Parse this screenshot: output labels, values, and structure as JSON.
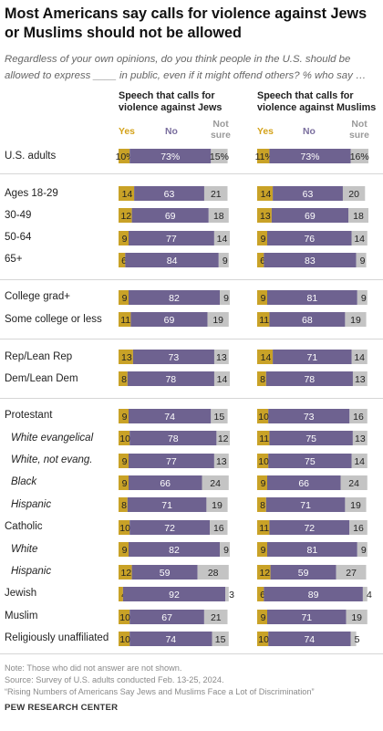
{
  "title": "Most Americans say calls for violence against Jews or Muslims should not be allowed",
  "subtitle": "Regardless of your own opinions, do you think people in the U.S. should be allowed to express ____ in public, even if it might offend others? % who say …",
  "legend": {
    "yes": "Yes",
    "no": "No",
    "not_sure": "Not sure"
  },
  "colors": {
    "yes": "#c9a227",
    "no": "#6e6290",
    "not_sure": "#c4c4c4"
  },
  "chart_data": {
    "type": "bar",
    "stacked": true,
    "orientation": "horizontal",
    "panels": [
      "Speech that calls for violence against Jews",
      "Speech that calls for violence against Muslims"
    ],
    "series_names": [
      "Yes",
      "No",
      "Not sure"
    ],
    "categories": [
      "U.S. adults",
      "Ages 18-29",
      "30-49",
      "50-64",
      "65+",
      "College grad+",
      "Some college or less",
      "Rep/Lean Rep",
      "Dem/Lean Dem",
      "Protestant",
      "White evangelical",
      "White, not evang.",
      "Black",
      "Hispanic",
      "Catholic",
      "White",
      "Hispanic",
      "Jewish",
      "Muslim",
      "Religiously unaffiliated"
    ],
    "jews": [
      [
        10,
        73,
        15
      ],
      [
        14,
        63,
        21
      ],
      [
        12,
        69,
        18
      ],
      [
        9,
        77,
        14
      ],
      [
        6,
        84,
        9
      ],
      [
        9,
        82,
        9
      ],
      [
        11,
        69,
        19
      ],
      [
        13,
        73,
        13
      ],
      [
        8,
        78,
        14
      ],
      [
        9,
        74,
        15
      ],
      [
        10,
        78,
        12
      ],
      [
        9,
        77,
        13
      ],
      [
        9,
        66,
        24
      ],
      [
        8,
        71,
        19
      ],
      [
        10,
        72,
        16
      ],
      [
        9,
        82,
        9
      ],
      [
        12,
        59,
        28
      ],
      [
        4,
        92,
        3
      ],
      [
        10,
        67,
        21
      ],
      [
        10,
        74,
        15
      ]
    ],
    "muslims": [
      [
        11,
        73,
        16
      ],
      [
        14,
        63,
        20
      ],
      [
        13,
        69,
        18
      ],
      [
        9,
        76,
        14
      ],
      [
        6,
        83,
        9
      ],
      [
        9,
        81,
        9
      ],
      [
        11,
        68,
        19
      ],
      [
        14,
        71,
        14
      ],
      [
        8,
        78,
        13
      ],
      [
        10,
        73,
        16
      ],
      [
        11,
        75,
        13
      ],
      [
        10,
        75,
        14
      ],
      [
        9,
        66,
        24
      ],
      [
        8,
        71,
        19
      ],
      [
        11,
        72,
        16
      ],
      [
        9,
        81,
        9
      ],
      [
        12,
        59,
        27
      ],
      [
        6,
        89,
        4
      ],
      [
        9,
        71,
        19
      ],
      [
        10,
        74,
        5
      ]
    ],
    "first_row_labels": {
      "jews": [
        "10%",
        "73%",
        "15%"
      ],
      "muslims": [
        "11%",
        "73%",
        "16%"
      ]
    }
  },
  "notes": {
    "line1": "Note: Those who did not answer are not shown.",
    "line2": "Source: Survey of U.S. adults conducted Feb. 13-25, 2024.",
    "line3": "“Rising Numbers of Americans Say Jews and Muslims Face a Lot of Discrimination”"
  },
  "brand": "PEW RESEARCH CENTER"
}
